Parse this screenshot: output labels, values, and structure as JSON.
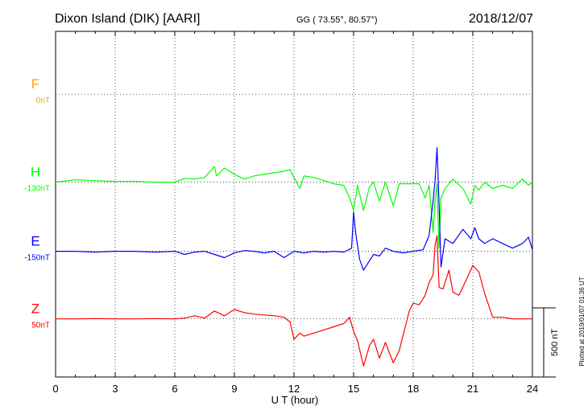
{
  "header": {
    "station": "Dixon Island (DIK)  [AARI]",
    "coords": "GG ( 73.55°,  80.57°)",
    "date": "2018/12/07"
  },
  "side_note": "Plotted at 2019/01/07 01:36 UT",
  "chart_data": {
    "type": "line",
    "xlabel": "U T (hour)",
    "xlim": [
      0,
      24
    ],
    "xticks": [
      0,
      3,
      6,
      9,
      12,
      15,
      18,
      21,
      24
    ],
    "ylim": [
      -500,
      1700
    ],
    "scale_bar": {
      "label": "500 nT",
      "value": 500
    },
    "series": [
      {
        "name": "F",
        "baseline_label": "0nT",
        "color": "#ffa500",
        "baseline": 1300,
        "x": [],
        "values": []
      },
      {
        "name": "H",
        "baseline_label": "-130nT",
        "color": "#00ff00",
        "baseline": 740,
        "x": [
          0,
          1,
          2,
          3,
          4,
          5,
          6,
          6.5,
          7,
          7.5,
          8,
          8.1,
          8.5,
          9,
          9.5,
          10,
          10.5,
          11,
          11.5,
          11.8,
          12,
          12.3,
          12.5,
          13,
          13.5,
          14,
          14.5,
          14.8,
          15.0,
          15.2,
          15.5,
          15.8,
          16.0,
          16.3,
          16.6,
          17.0,
          17.3,
          17.8,
          18.0,
          18.3,
          18.6,
          18.8,
          19.0,
          19.1,
          19.2,
          19.25,
          19.3,
          19.4,
          19.6,
          20.0,
          20.5,
          20.9,
          21.1,
          21.3,
          21.6,
          22.0,
          22.5,
          23.0,
          23.5,
          23.8,
          24
        ],
        "values": [
          740,
          755,
          750,
          745,
          745,
          740,
          740,
          765,
          760,
          770,
          840,
          780,
          830,
          790,
          760,
          780,
          790,
          800,
          810,
          820,
          770,
          700,
          780,
          770,
          750,
          730,
          720,
          640,
          560,
          720,
          560,
          710,
          740,
          620,
          740,
          590,
          730,
          730,
          730,
          730,
          640,
          720,
          420,
          620,
          730,
          500,
          320,
          640,
          700,
          760,
          700,
          600,
          720,
          690,
          740,
          700,
          720,
          700,
          760,
          720,
          740
        ]
      },
      {
        "name": "E",
        "baseline_label": "-150nT",
        "color": "#0000ff",
        "baseline": 300,
        "x": [
          0,
          1,
          2,
          3,
          4,
          5,
          6,
          6.5,
          7,
          7.5,
          8,
          8.5,
          9,
          9.5,
          10,
          10.5,
          11,
          11.5,
          12,
          12.5,
          13,
          13.5,
          14,
          14.5,
          14.9,
          15.0,
          15.1,
          15.3,
          15.5,
          15.8,
          16.0,
          16.3,
          16.6,
          17.0,
          17.5,
          18.0,
          18.5,
          18.8,
          19.0,
          19.1,
          19.2,
          19.3,
          19.4,
          19.6,
          20.0,
          20.5,
          20.9,
          21.1,
          21.3,
          21.6,
          22.0,
          22.5,
          23.0,
          23.5,
          23.8,
          24
        ],
        "values": [
          300,
          300,
          295,
          300,
          300,
          295,
          300,
          280,
          295,
          300,
          280,
          260,
          290,
          305,
          300,
          290,
          300,
          260,
          300,
          290,
          300,
          295,
          300,
          295,
          320,
          550,
          420,
          250,
          180,
          240,
          280,
          270,
          320,
          300,
          290,
          300,
          310,
          400,
          620,
          750,
          960,
          600,
          200,
          380,
          350,
          440,
          380,
          450,
          380,
          350,
          380,
          350,
          320,
          350,
          390,
          310
        ]
      },
      {
        "name": "Z",
        "baseline_label": "50nT",
        "color": "#ff0000",
        "baseline": -130,
        "x": [
          0,
          1,
          2,
          3,
          4,
          5,
          6,
          6.5,
          7,
          7.5,
          8,
          8.5,
          9,
          9.5,
          10,
          10.5,
          11,
          11.5,
          11.8,
          12.0,
          12.3,
          12.5,
          13,
          13.5,
          14,
          14.5,
          14.8,
          15.0,
          15.2,
          15.5,
          15.8,
          16.0,
          16.3,
          16.6,
          17.0,
          17.3,
          17.8,
          18.0,
          18.3,
          18.6,
          18.8,
          19.0,
          19.1,
          19.2,
          19.3,
          19.5,
          19.8,
          20.0,
          20.3,
          20.6,
          21.0,
          21.3,
          21.6,
          22.0,
          22.5,
          23.0,
          23.5,
          24
        ],
        "values": [
          -130,
          -130,
          -128,
          -130,
          -130,
          -128,
          -130,
          -125,
          -110,
          -125,
          -80,
          -110,
          -70,
          -90,
          -100,
          -105,
          -110,
          -120,
          -150,
          -260,
          -220,
          -240,
          -220,
          -200,
          -180,
          -160,
          -120,
          -210,
          -270,
          -430,
          -300,
          -260,
          -380,
          -280,
          -410,
          -330,
          -80,
          -30,
          -40,
          20,
          100,
          150,
          340,
          400,
          70,
          60,
          180,
          40,
          20,
          100,
          210,
          170,
          30,
          -120,
          -120,
          -130,
          -130,
          -130
        ]
      }
    ],
    "grid": true
  }
}
